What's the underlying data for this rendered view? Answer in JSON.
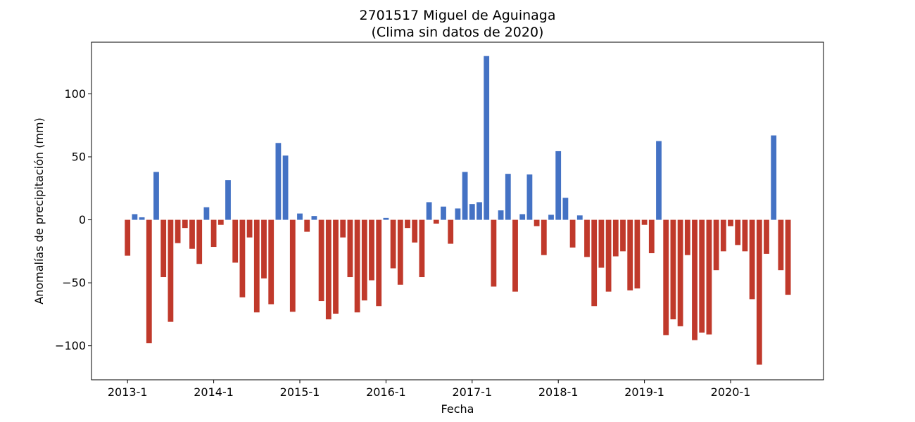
{
  "chart_data": {
    "type": "bar",
    "title": "2701517 Miguel de Aguinaga",
    "subtitle": "(Clima sin datos de 2020)",
    "xlabel": "Fecha",
    "ylabel": "Anomalías de precipitación (mm)",
    "ylim": [
      -127,
      141
    ],
    "yticks": [
      -100,
      -50,
      0,
      50,
      100
    ],
    "xtick_labels": [
      "2013-1",
      "2014-1",
      "2015-1",
      "2016-1",
      "2017-1",
      "2018-1",
      "2019-1",
      "2020-1"
    ],
    "grid": false,
    "colors": {
      "positive": "#4472c4",
      "negative": "#c0392b"
    },
    "start_month": "2013-1",
    "values": [
      -28.5,
      4.5,
      2.0,
      -98.0,
      38.0,
      -45.5,
      -81.0,
      -18.5,
      -6.5,
      -23.0,
      -35.0,
      10.0,
      -21.5,
      -4.0,
      31.5,
      -34.0,
      -61.5,
      -14.0,
      -73.5,
      -46.5,
      -67.0,
      61.0,
      51.0,
      -73.0,
      5.0,
      -9.5,
      3.0,
      -64.5,
      -79.0,
      -74.5,
      -14.0,
      -45.5,
      -73.5,
      -64.0,
      -48.0,
      -68.5,
      1.5,
      -38.5,
      -51.5,
      -6.5,
      -18.0,
      -45.5,
      14.0,
      -3.0,
      10.5,
      -19.0,
      9.0,
      38.0,
      12.5,
      14.0,
      130.0,
      -53.0,
      7.5,
      36.5,
      -57.0,
      4.5,
      36.0,
      -5.0,
      -28.0,
      4.0,
      54.5,
      17.5,
      -22.0,
      3.5,
      -29.5,
      -68.5,
      -38.0,
      -57.0,
      -29.0,
      -25.0,
      -56.0,
      -54.5,
      -4.0,
      -26.5,
      62.5,
      -91.5,
      -79.0,
      -84.5,
      -28.0,
      -95.5,
      -89.5,
      -91.0,
      -40.0,
      -25.0,
      -5.0,
      -20.0,
      -25.0,
      -63.0,
      -115.0,
      -27.0,
      67.0,
      -40.0,
      -59.5
    ]
  }
}
